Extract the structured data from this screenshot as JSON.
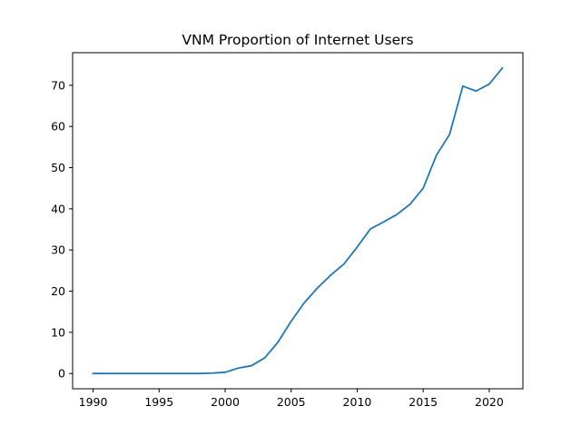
{
  "chart_data": {
    "type": "line",
    "title": "VNM Proportion of Internet Users",
    "xlabel": "",
    "ylabel": "",
    "grid": false,
    "legend": "none",
    "xlim": [
      1988.45,
      2022.55
    ],
    "ylim": [
      -3.71,
      77.92
    ],
    "x_ticks": [
      1990,
      1995,
      2000,
      2005,
      2010,
      2015,
      2020
    ],
    "x_tick_labels": [
      "1990",
      "1995",
      "2000",
      "2005",
      "2010",
      "2015",
      "2020"
    ],
    "y_ticks": [
      0,
      10,
      20,
      30,
      40,
      50,
      60,
      70
    ],
    "y_tick_labels": [
      "0",
      "10",
      "20",
      "30",
      "40",
      "50",
      "60",
      "70"
    ],
    "series": [
      {
        "color": "#1f77b4",
        "x": [
          1990,
          1991,
          1992,
          1993,
          1994,
          1995,
          1996,
          1997,
          1998,
          1999,
          2000,
          2001,
          2002,
          2003,
          2004,
          2005,
          2006,
          2007,
          2008,
          2009,
          2010,
          2011,
          2012,
          2013,
          2014,
          2015,
          2016,
          2017,
          2018,
          2019,
          2020,
          2021
        ],
        "y": [
          0,
          0,
          0,
          0,
          0,
          0,
          0,
          0,
          0,
          0.1,
          0.3,
          1.3,
          1.9,
          3.8,
          7.6,
          12.7,
          17.2,
          20.8,
          23.9,
          26.6,
          30.7,
          35.1,
          36.8,
          38.6,
          41.1,
          45.0,
          53.0,
          58.1,
          69.8,
          68.6,
          70.3,
          74.2
        ]
      }
    ]
  }
}
